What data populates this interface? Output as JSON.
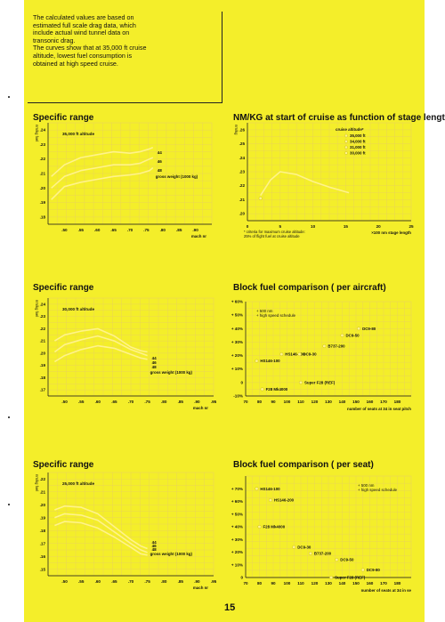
{
  "intro": {
    "text": "The calculated values are based on\nestimated full scale drag data, which\ninclude actual wind tunnel  data on\ntransonic drag.\nThe curves show that at 35,000 ft cruise\naltitude, lowest fuel consumption is\nobtained at high speed cruise."
  },
  "page_number": "15",
  "colors": {
    "page": "#f4ee2a",
    "grid": "#e8d060",
    "curve": "#fff38a",
    "marker": "#fff38a"
  },
  "chart_data": [
    {
      "id": "sr1",
      "type": "line",
      "title": "Specific range",
      "ylabel": "nm/kg fuel",
      "xlabel": "mach nr",
      "annotation": "35,000 ft altitude",
      "legend_text": "gross weight (1000 kg)",
      "xlim": [
        0.45,
        0.95
      ],
      "ylim": [
        0.175,
        0.245
      ],
      "xticks": [
        ".50",
        ".55",
        ".60",
        ".65",
        ".70",
        ".75",
        ".80",
        ".85",
        ".90"
      ],
      "yticks": [
        ".24",
        ".23",
        ".22",
        ".21",
        ".20",
        ".19",
        ".18"
      ],
      "series": [
        {
          "name": "44",
          "x": [
            0.46,
            0.5,
            0.55,
            0.6,
            0.65,
            0.7,
            0.73,
            0.76,
            0.77
          ],
          "y": [
            0.208,
            0.216,
            0.221,
            0.223,
            0.225,
            0.224,
            0.225,
            0.227,
            0.228
          ]
        },
        {
          "name": "46",
          "x": [
            0.46,
            0.5,
            0.55,
            0.6,
            0.65,
            0.7,
            0.73,
            0.76,
            0.77
          ],
          "y": [
            0.2,
            0.208,
            0.212,
            0.214,
            0.216,
            0.216,
            0.217,
            0.22,
            0.221
          ]
        },
        {
          "name": "48",
          "x": [
            0.46,
            0.5,
            0.55,
            0.6,
            0.65,
            0.7,
            0.73,
            0.76,
            0.77
          ],
          "y": [
            0.192,
            0.201,
            0.204,
            0.206,
            0.208,
            0.209,
            0.21,
            0.212,
            0.214
          ]
        }
      ]
    },
    {
      "id": "nmkg",
      "type": "line",
      "title": "NM/KG at start of cruise as function of stage length",
      "ylabel": "nm/kg",
      "xlabel": "×100 nm stage length",
      "footnote": "* criteria for maximum cruise altitude:\n  25% of flight fuel at cruise altitude",
      "legend_title": "cruise altitude*",
      "legend_entries": [
        "35,000 ft",
        "34,000 ft",
        "31,000 ft",
        "30,000 ft"
      ],
      "xlim": [
        0,
        25
      ],
      "ylim": [
        0.195,
        0.265
      ],
      "xticks": [
        "0",
        "5",
        "10",
        "15",
        "20",
        "25"
      ],
      "yticks": [
        ".26",
        ".25",
        ".24",
        ".23",
        ".22",
        ".21",
        ".20"
      ],
      "series": [
        {
          "name": "curve",
          "x": [
            2,
            3.5,
            5,
            7.5,
            10,
            12.5,
            15.5
          ],
          "y": [
            0.213,
            0.224,
            0.23,
            0.228,
            0.223,
            0.219,
            0.215
          ]
        }
      ],
      "markers": [
        {
          "x": 2,
          "y": 0.211
        }
      ]
    },
    {
      "id": "sr2",
      "type": "line",
      "title": "Specific range",
      "ylabel": "nm/kg fuel",
      "xlabel": "mach nr",
      "annotation": "30,000 ft altitude",
      "legend_text": "gross weight (1000 kg)",
      "xlim": [
        0.45,
        0.95
      ],
      "ylim": [
        0.165,
        0.245
      ],
      "xticks": [
        ".50",
        ".55",
        ".60",
        ".65",
        ".70",
        ".75",
        ".80",
        ".85",
        ".90",
        ".95"
      ],
      "yticks": [
        ".24",
        ".23",
        ".22",
        ".21",
        ".20",
        ".19",
        ".18",
        ".17"
      ],
      "series": [
        {
          "name": "44",
          "x": [
            0.47,
            0.5,
            0.55,
            0.6,
            0.65,
            0.7,
            0.73,
            0.75
          ],
          "y": [
            0.21,
            0.215,
            0.218,
            0.22,
            0.214,
            0.205,
            0.202,
            0.201
          ]
        },
        {
          "name": "46",
          "x": [
            0.47,
            0.5,
            0.55,
            0.6,
            0.65,
            0.7,
            0.73,
            0.75
          ],
          "y": [
            0.201,
            0.207,
            0.211,
            0.214,
            0.21,
            0.203,
            0.2,
            0.198
          ]
        },
        {
          "name": "48",
          "x": [
            0.47,
            0.5,
            0.55,
            0.6,
            0.65,
            0.7,
            0.73,
            0.75
          ],
          "y": [
            0.193,
            0.198,
            0.203,
            0.206,
            0.204,
            0.199,
            0.196,
            0.195
          ]
        }
      ]
    },
    {
      "id": "bf1",
      "type": "scatter",
      "title": "Block fuel comparison ( per aircraft)",
      "xlabel": "number of seats at 34 in seat pitch",
      "annotation": "+ 500 nm\n+ high speed schedule",
      "xlim": [
        70,
        190
      ],
      "ylim": [
        -10,
        60
      ],
      "xticks": [
        "70",
        "80",
        "90",
        "100",
        "110",
        "120",
        "130",
        "140",
        "150",
        "160",
        "170",
        "180"
      ],
      "yticks": [
        "+ 60%",
        "+ 50%",
        "+ 40%",
        "+ 30%",
        "+ 20%",
        "+ 10%",
        "0",
        "-10%"
      ],
      "points": [
        {
          "label": "DC9-80",
          "x": 152,
          "y": 40
        },
        {
          "label": "DC9-50",
          "x": 140,
          "y": 35
        },
        {
          "label": "B737-200",
          "x": 127,
          "y": 27
        },
        {
          "label": "HS146-200",
          "x": 96,
          "y": 21
        },
        {
          "label": "DC9-30",
          "x": 109,
          "y": 21
        },
        {
          "label": "HS146-100",
          "x": 78,
          "y": 16
        },
        {
          "label": "Super F28 (REF)",
          "x": 110,
          "y": 0
        },
        {
          "label": "F28 Mk4000",
          "x": 82,
          "y": -5
        }
      ]
    },
    {
      "id": "sr3",
      "type": "line",
      "title": "Specific range",
      "ylabel": "nm/kg fuel",
      "xlabel": "mach nr",
      "annotation": "25,000 ft altitude",
      "legend_text": "gross weight (1000 kg)",
      "xlim": [
        0.45,
        0.95
      ],
      "ylim": [
        0.145,
        0.225
      ],
      "xticks": [
        ".50",
        ".55",
        ".60",
        ".65",
        ".70",
        ".75",
        ".80",
        ".85",
        ".90",
        ".95"
      ],
      "yticks": [
        ".22",
        ".21",
        ".20",
        ".19",
        ".18",
        ".17",
        ".16",
        ".15"
      ],
      "series": [
        {
          "name": "44",
          "x": [
            0.47,
            0.5,
            0.55,
            0.6,
            0.65,
            0.7,
            0.73,
            0.75
          ],
          "y": [
            0.196,
            0.199,
            0.198,
            0.193,
            0.183,
            0.173,
            0.168,
            0.166
          ]
        },
        {
          "name": "46",
          "x": [
            0.47,
            0.5,
            0.55,
            0.6,
            0.65,
            0.7,
            0.73,
            0.75
          ],
          "y": [
            0.19,
            0.193,
            0.192,
            0.188,
            0.179,
            0.17,
            0.165,
            0.163
          ]
        },
        {
          "name": "48",
          "x": [
            0.47,
            0.5,
            0.55,
            0.6,
            0.65,
            0.7,
            0.73,
            0.75
          ],
          "y": [
            0.184,
            0.187,
            0.186,
            0.182,
            0.175,
            0.167,
            0.162,
            0.161
          ]
        }
      ]
    },
    {
      "id": "bf2",
      "type": "scatter",
      "title": "Block fuel comparison ( per seat)",
      "xlabel": "number of seats at 34 in se",
      "annotation": "+ 500 nm\n+ high speed schedule",
      "xlim": [
        70,
        190
      ],
      "ylim": [
        0,
        80
      ],
      "xticks": [
        "70",
        "80",
        "90",
        "100",
        "110",
        "120",
        "130",
        "140",
        "150",
        "160",
        "170",
        "180"
      ],
      "yticks": [
        "+ 70%",
        "+ 60%",
        "+ 50%",
        "+ 40%",
        "+ 30%",
        "+ 20%",
        "+ 10%",
        "0"
      ],
      "points": [
        {
          "label": "HS146-100",
          "x": 78,
          "y": 70
        },
        {
          "label": "HS146-200",
          "x": 88,
          "y": 61
        },
        {
          "label": "F28 Mk4000",
          "x": 80,
          "y": 40
        },
        {
          "label": "DC9-30",
          "x": 105,
          "y": 24
        },
        {
          "label": "B737-200",
          "x": 117,
          "y": 19
        },
        {
          "label": "DC9-50",
          "x": 136,
          "y": 14
        },
        {
          "label": "Super F28 (REF)",
          "x": 132,
          "y": 0
        },
        {
          "label": "DC9-80",
          "x": 155,
          "y": 6
        }
      ]
    }
  ]
}
